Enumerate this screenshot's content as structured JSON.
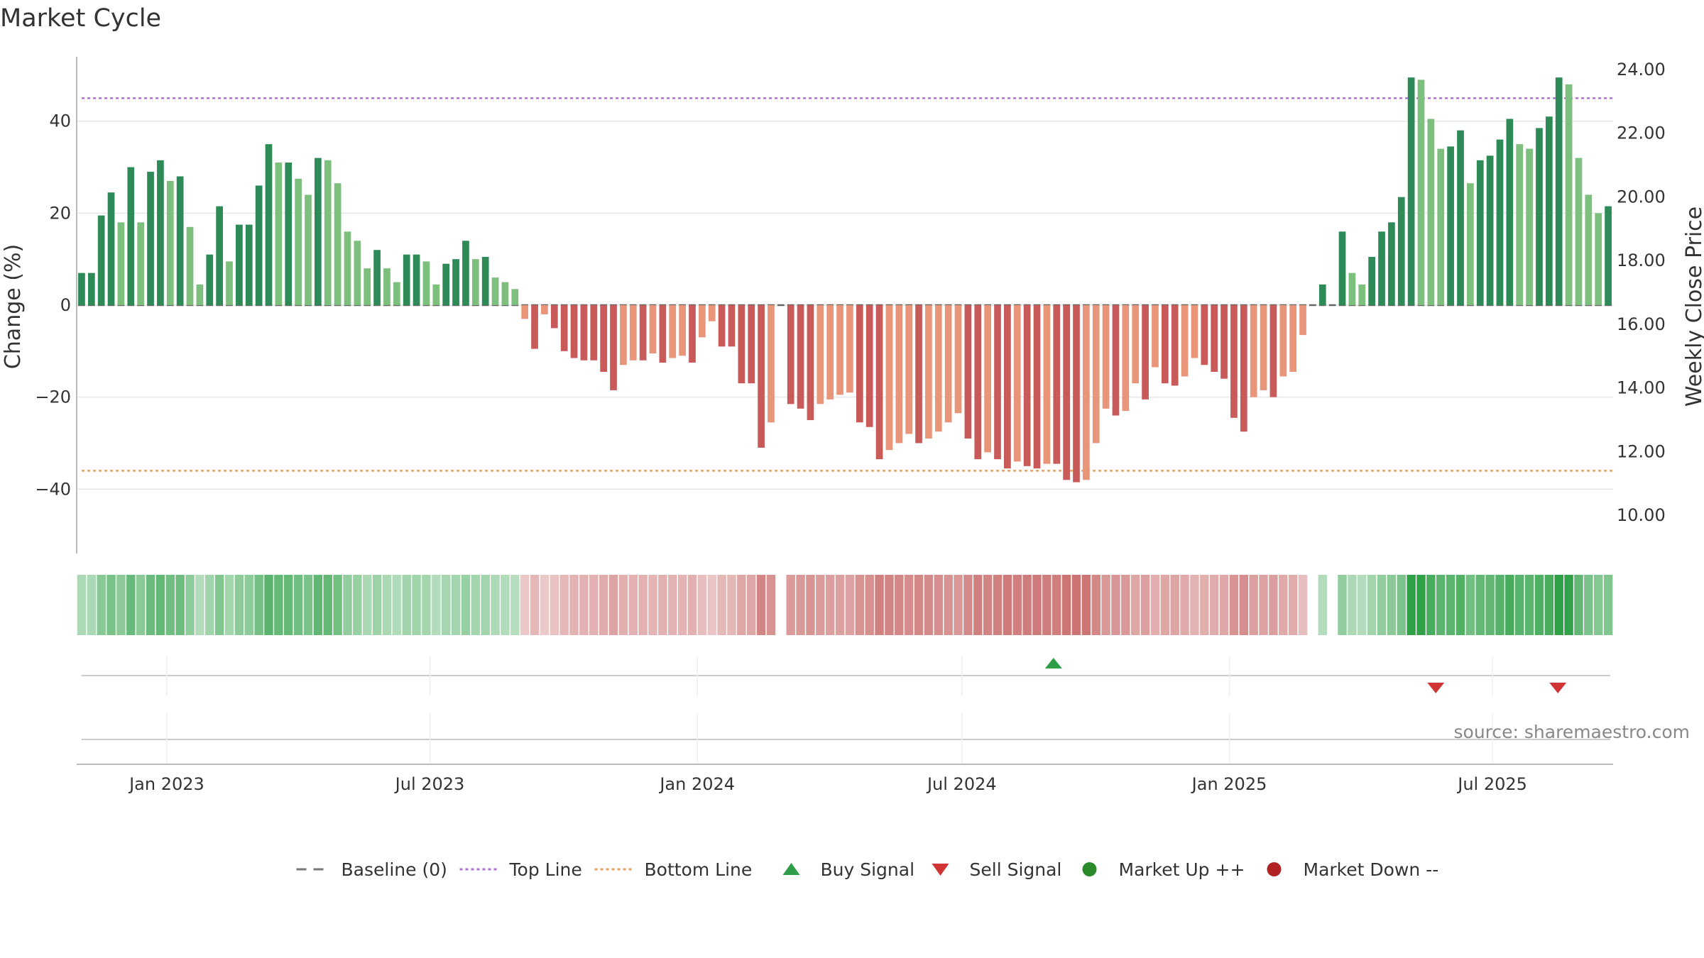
{
  "chart_data": {
    "type": "bar",
    "title": "Market Cycle",
    "ylabel": "Change (%)",
    "y2label": "Weekly Close Price",
    "ylim": [
      -54,
      54
    ],
    "y2lim": [
      8.8,
      24.4
    ],
    "yticks": [
      -40,
      -20,
      0,
      20,
      40
    ],
    "ytick_labels": [
      "−40",
      "−20",
      "0",
      "20",
      "40"
    ],
    "y2ticks": [
      10,
      12,
      14,
      16,
      18,
      20,
      22,
      24
    ],
    "y2tick_labels": [
      "10.00",
      "12.00",
      "14.00",
      "16.00",
      "18.00",
      "20.00",
      "22.00",
      "24.00"
    ],
    "x_start": "2022-10-31",
    "x_end": "2025-09-22",
    "x_ticks": [
      {
        "date": "2023-01-01",
        "label": "Jan 2023"
      },
      {
        "date": "2023-07-01",
        "label": "Jul 2023"
      },
      {
        "date": "2024-01-01",
        "label": "Jan 2024"
      },
      {
        "date": "2024-07-01",
        "label": "Jul 2024"
      },
      {
        "date": "2025-01-01",
        "label": "Jan 2025"
      },
      {
        "date": "2025-07-01",
        "label": "Jul 2025"
      }
    ],
    "top_line": 45,
    "bottom_line": -36,
    "baseline": 0,
    "first_week": "2022-11-04",
    "week_interval_days": 7,
    "values": [
      7,
      7,
      19.5,
      24.5,
      18,
      30,
      18,
      29,
      31.5,
      27,
      28,
      17,
      4.5,
      11,
      21.5,
      9.5,
      17.5,
      17.5,
      26,
      35,
      31,
      31,
      27.5,
      24,
      32,
      31.5,
      26.5,
      16,
      14,
      8,
      12,
      8,
      5,
      11,
      11,
      9.5,
      4.5,
      9,
      10,
      14,
      10,
      10.5,
      6,
      5,
      3.5,
      -3,
      -9.5,
      -2,
      -5,
      -10,
      -11.5,
      -12,
      -12,
      -14.5,
      -18.5,
      -13,
      -12,
      -12,
      -10.5,
      -12.5,
      -11.5,
      -11,
      -12.5,
      -7,
      -3.5,
      -9,
      -9,
      -17,
      -17,
      -31,
      -25.5,
      0,
      -21.5,
      -22.5,
      -25,
      -21.5,
      -20.5,
      -19.5,
      -19,
      -25.5,
      -26.5,
      -33.5,
      -31.5,
      -30,
      -28,
      -30,
      -29,
      -27.5,
      -25.5,
      -23.5,
      -29,
      -33.5,
      -32,
      -33.5,
      -35.5,
      -34,
      -35,
      -35.5,
      -34.5,
      -34.5,
      -38,
      -38.5,
      -38,
      -30,
      -22.5,
      -24,
      -23,
      -17,
      -20.5,
      -13.5,
      -17,
      -17.5,
      -15.5,
      -11.5,
      -13,
      -14.5,
      -16,
      -24.5,
      -27.5,
      -20,
      -18.5,
      -20,
      -15.5,
      -14.5,
      -6.5,
      0,
      4.5,
      0,
      16,
      7,
      4.5,
      10.5,
      16,
      18,
      23.5,
      49.5,
      49,
      40.5,
      34,
      34.5,
      38,
      26.5,
      31.5,
      32.5,
      36,
      40.5,
      35,
      34,
      38.5,
      41,
      49.5,
      48,
      32,
      24,
      20,
      21.5
    ],
    "buy_signals": [
      {
        "date": "2024-09-02"
      }
    ],
    "sell_signals": [
      {
        "date": "2025-05-23"
      },
      {
        "date": "2025-08-15"
      }
    ],
    "source": "source: sharemaestro.com",
    "legend_position": "bottom-center",
    "grid": true
  },
  "legend": {
    "items": [
      {
        "label": "Baseline (0)",
        "kind": "dash",
        "color": "#777777"
      },
      {
        "label": "Top Line",
        "kind": "dot",
        "color": "#b070d8"
      },
      {
        "label": "Bottom Line",
        "kind": "dot",
        "color": "#e8a060"
      },
      {
        "label": "Buy Signal",
        "kind": "triangle-up",
        "color": "#2e9e48"
      },
      {
        "label": "Sell Signal",
        "kind": "triangle-down",
        "color": "#d13434"
      },
      {
        "label": "Market Up ++",
        "kind": "circle",
        "color": "#2a8a2a"
      },
      {
        "label": "Market Down --",
        "kind": "circle",
        "color": "#b22222"
      }
    ]
  },
  "colors": {
    "up_dark": "#2e8b57",
    "up_light": "#7dbf7d",
    "down_dark": "#c95a5a",
    "down_light": "#e8957a",
    "top_line": "#b070d8",
    "bottom_line": "#e8a060"
  }
}
